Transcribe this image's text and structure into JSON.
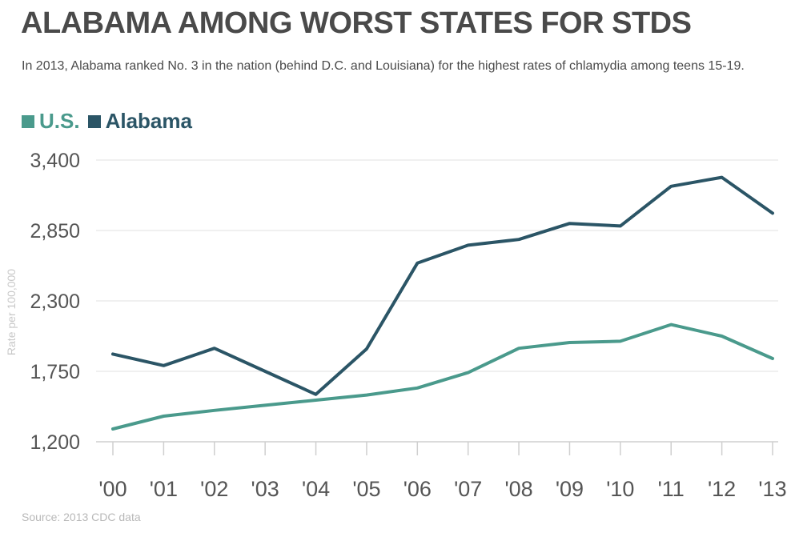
{
  "title": "ALABAMA AMONG WORST STATES FOR STDS",
  "subtitle": "In 2013, Alabama ranked No. 3 in the nation (behind D.C. and Louisiana) for the highest rates of chlamydia among teens 15-19.",
  "source": "Source: 2013 CDC data",
  "colors": {
    "us": "#4a9a8c",
    "alabama": "#2b5566",
    "grid": "#e0e0e0",
    "tick": "#555555",
    "axis_label": "#c8c8c8"
  },
  "chart_data": {
    "type": "line",
    "title": "ALABAMA AMONG WORST STATES FOR STDS",
    "ylabel": "Rate per 100,000",
    "xlabel": "",
    "categories": [
      "'00",
      "'01",
      "'02",
      "'03",
      "'04",
      "'05",
      "'06",
      "'07",
      "'08",
      "'09",
      "'10",
      "'11",
      "'12",
      "'13"
    ],
    "ylim": [
      1200,
      3400
    ],
    "yticks": [
      3400,
      2850,
      2300,
      1750,
      1200
    ],
    "ytick_labels": [
      "3,400",
      "2,850",
      "2,300",
      "1,750",
      "1,200"
    ],
    "grid": true,
    "legend": "top-left",
    "series": [
      {
        "name": "U.S.",
        "color": "#4a9a8c",
        "values": [
          1300,
          1400,
          1445,
          1485,
          1525,
          1565,
          1620,
          1740,
          1930,
          1975,
          1985,
          2115,
          2025,
          1850
        ]
      },
      {
        "name": "Alabama",
        "color": "#2b5566",
        "values": [
          1885,
          1795,
          1930,
          1750,
          1570,
          1925,
          2595,
          2735,
          2780,
          2905,
          2885,
          3195,
          3265,
          2985
        ]
      }
    ]
  }
}
